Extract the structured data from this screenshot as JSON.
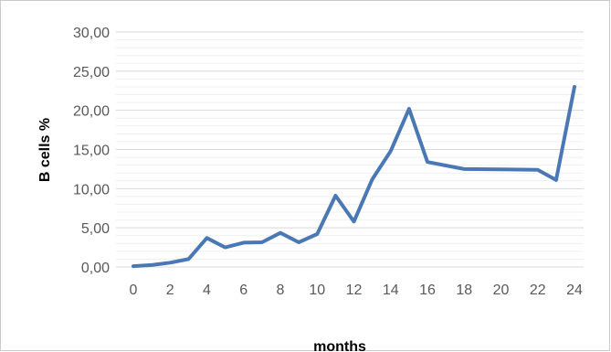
{
  "chart_data": {
    "type": "line",
    "title": "",
    "xlabel": "months",
    "ylabel": "B cells %",
    "xlim": [
      0,
      24
    ],
    "ylim": [
      0,
      30
    ],
    "y_ticks": [
      "0,00",
      "5,00",
      "10,00",
      "15,00",
      "20,00",
      "25,00",
      "30,00"
    ],
    "x_ticks": [
      "0",
      "2",
      "4",
      "6",
      "8",
      "10",
      "12",
      "14",
      "16",
      "18",
      "20",
      "22",
      "24"
    ],
    "grid": true,
    "legend": "none",
    "series": [
      {
        "color": "#4a78b5",
        "x": [
          0,
          1,
          2,
          3,
          4,
          5,
          6,
          7,
          8,
          9,
          10,
          11,
          12,
          13,
          14,
          15,
          16,
          18,
          20,
          22,
          23,
          24
        ],
        "y": [
          0.1,
          0.25,
          0.55,
          1.0,
          3.7,
          2.5,
          3.1,
          3.15,
          4.35,
          3.15,
          4.2,
          9.1,
          5.8,
          11.2,
          14.8,
          20.2,
          13.4,
          12.5,
          12.45,
          12.4,
          11.1,
          23.0
        ]
      }
    ]
  }
}
